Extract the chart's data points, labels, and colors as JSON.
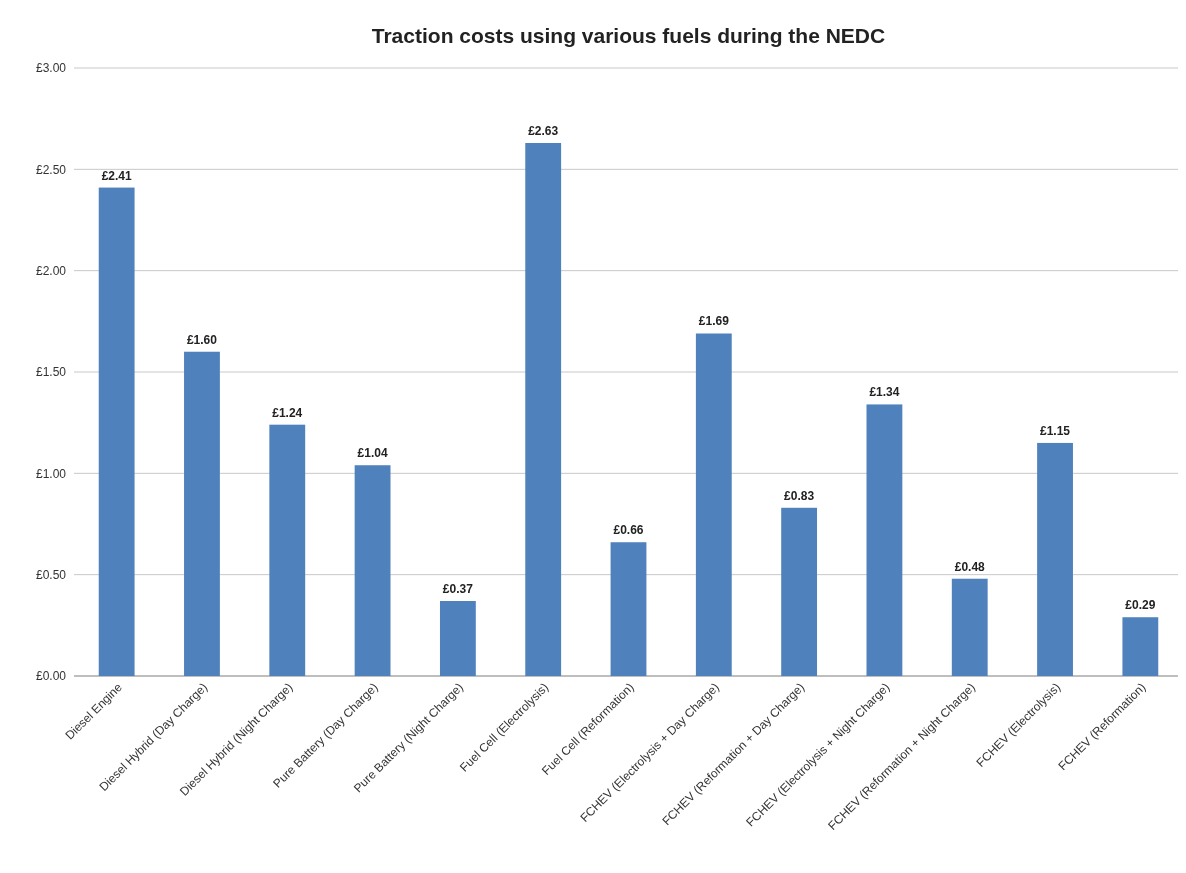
{
  "chart_data": {
    "type": "bar",
    "title": "Traction costs using various fuels during the NEDC",
    "categories": [
      "Diesel Engine",
      "Diesel Hybrid (Day Charge)",
      "Diesel Hybrid (Night Charge)",
      "Pure Battery (Day Charge)",
      "Pure Battery (Night Charge)",
      "Fuel Cell (Electrolysis)",
      "Fuel Cell (Reformation)",
      "FCHEV (Electrolysis + Day Charge)",
      "FCHEV (Reformation + Day Charge)",
      "FCHEV (Electrolysis + Night Charge)",
      "FCHEV (Reformation + Night Charge)",
      "FCHEV (Electrolysis)",
      "FCHEV (Reformation)"
    ],
    "values": [
      2.41,
      1.6,
      1.24,
      1.04,
      0.37,
      2.63,
      0.66,
      1.69,
      0.83,
      1.34,
      0.48,
      1.15,
      0.29
    ],
    "value_labels": [
      "£2.41",
      "£1.60",
      "£1.24",
      "£1.04",
      "£0.37",
      "£2.63",
      "£0.66",
      "£1.69",
      "£0.83",
      "£1.34",
      "£0.48",
      "£1.15",
      "£0.29"
    ],
    "color": "#4f81bd",
    "ylim": [
      0,
      3
    ],
    "yticks": [
      {
        "value": 0,
        "label": "£0.00"
      },
      {
        "value": 0.5,
        "label": "£0.50"
      },
      {
        "value": 1,
        "label": "£1.00"
      },
      {
        "value": 1.5,
        "label": "£1.50"
      },
      {
        "value": 2,
        "label": "£2.00"
      },
      {
        "value": 2.5,
        "label": "£2.50"
      },
      {
        "value": 3,
        "label": "£3.00"
      }
    ],
    "grid": "y"
  }
}
